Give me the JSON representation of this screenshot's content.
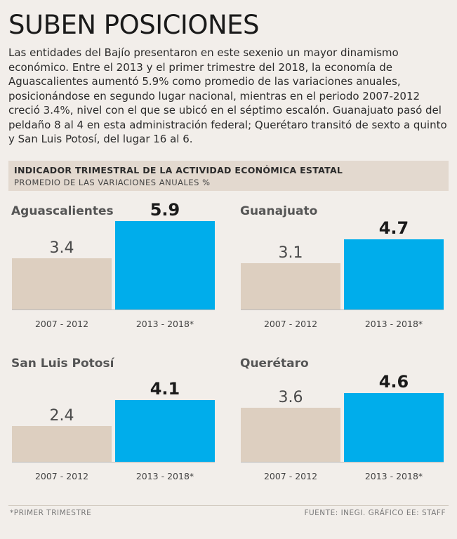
{
  "title": "SUBEN POSICIONES",
  "intro": "Las entidades del Bajío presentaron en este sexenio un mayor dinamismo económico. Entre el 2013 y el primer trimestre del 2018, la economía de Aguascalientes aumentó 5.9% como promedio de las variaciones anuales, posicionándose en segundo lugar nacional, mientras en el periodo 2007-2012 creció 3.4%, nivel con el que se ubicó en el séptimo escalón. Guanajuato pasó del peldaño 8 al 4 en esta administración federal; Querétaro transitó de sexto a quinto y San Luis Potosí, del lugar 16 al 6.",
  "header": {
    "title": "INDICADOR TRIMESTRAL DE LA ACTIVIDAD ECONÓMICA ESTATAL",
    "subtitle": "PROMEDIO DE LAS VARIACIONES ANUALES %"
  },
  "chart_data": {
    "type": "bar",
    "title": "INDICADOR TRIMESTRAL DE LA ACTIVIDAD ECONÓMICA ESTATAL",
    "ylabel": "PROMEDIO DE LAS VARIACIONES ANUALES %",
    "categories": [
      "2007 - 2012",
      "2013 - 2018*"
    ],
    "ylim": [
      0,
      6.5
    ],
    "colors": [
      "#ddcfc0",
      "#00adeb"
    ],
    "panels": [
      {
        "name": "Aguascalientes",
        "values": [
          "3.4",
          "5.9"
        ]
      },
      {
        "name": "Guanajuato",
        "values": [
          "3.1",
          "4.7"
        ]
      },
      {
        "name": "San Luis Potosí",
        "values": [
          "2.4",
          "4.1"
        ]
      },
      {
        "name": "Querétaro",
        "values": [
          "3.6",
          "4.6"
        ]
      }
    ]
  },
  "footnote": "*PRIMER TRIMESTRE",
  "source": "FUENTE: INEGI. GRÁFICO EE: STAFF"
}
